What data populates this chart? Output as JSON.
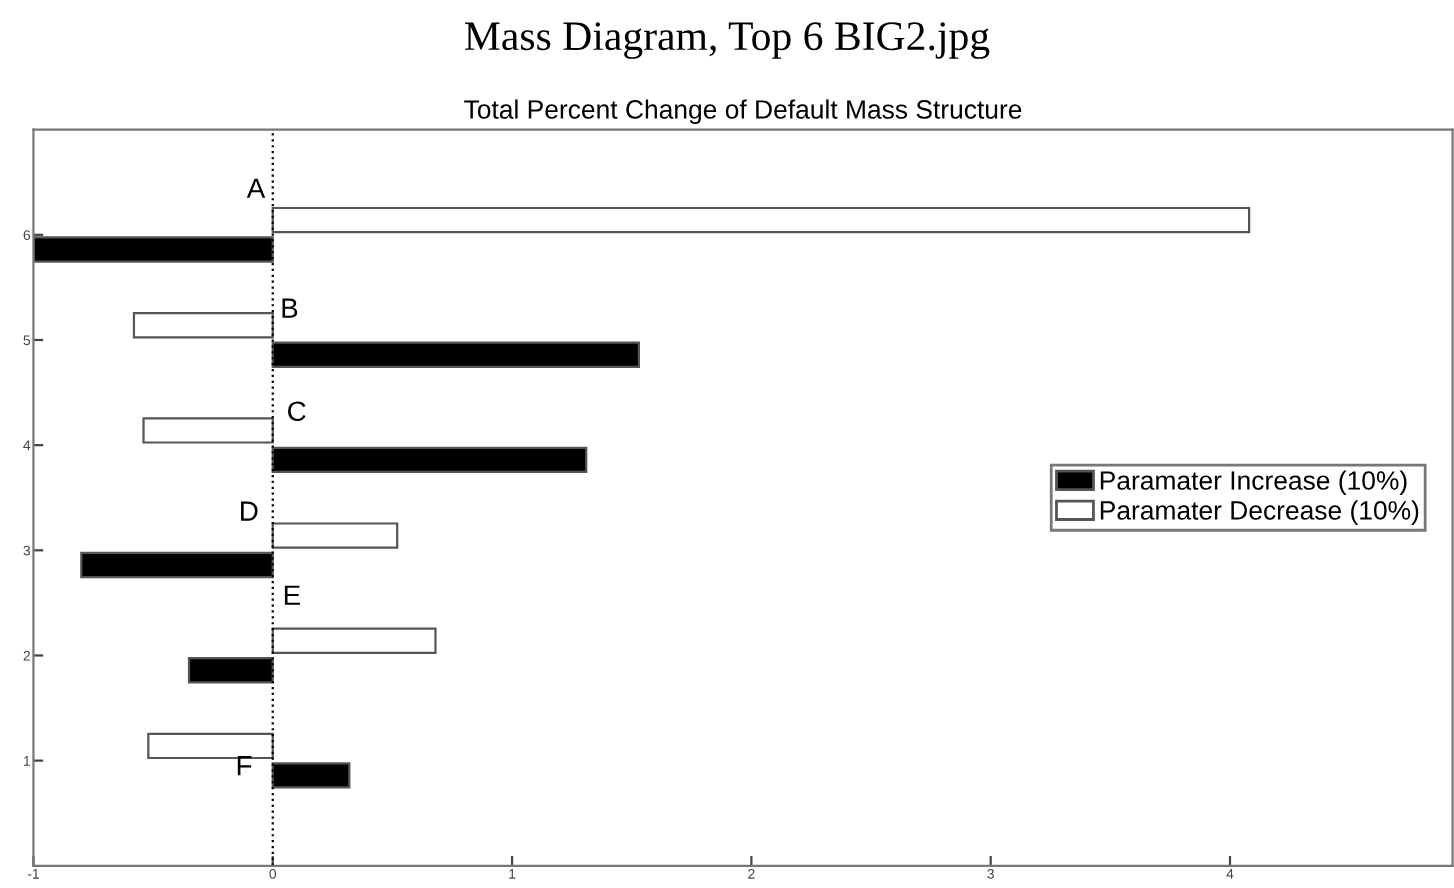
{
  "chart_data": {
    "type": "bar",
    "orientation": "horizontal",
    "title": "Mass Diagram, Top 6 BIG2.jpg",
    "subtitle": "Total Percent Change of Default Mass Structure",
    "x": [
      1,
      2,
      3,
      4,
      5,
      6
    ],
    "series": [
      {
        "name": "Paramater Increase (10%)",
        "color": "#000000",
        "values": [
          0.32,
          -0.35,
          -0.8,
          1.31,
          1.53,
          -1.0
        ]
      },
      {
        "name": "Paramater Decrease (10%)",
        "color": "#ffffff",
        "values": [
          -0.52,
          0.68,
          0.52,
          -0.54,
          -0.58,
          4.08
        ]
      }
    ],
    "xlim": [
      -1,
      4.93
    ],
    "xticks": [
      -1,
      0,
      1,
      2,
      3,
      4
    ],
    "ylim": [
      0,
      7
    ],
    "yticks": [
      1,
      2,
      3,
      4,
      5,
      6
    ],
    "ref_lines": [
      {
        "axis": "x",
        "value": 0,
        "line_style": "dotted"
      }
    ],
    "annotations": [
      "A",
      "B",
      "C",
      "D",
      "E",
      "F"
    ],
    "legend": "center right",
    "grid": false
  }
}
